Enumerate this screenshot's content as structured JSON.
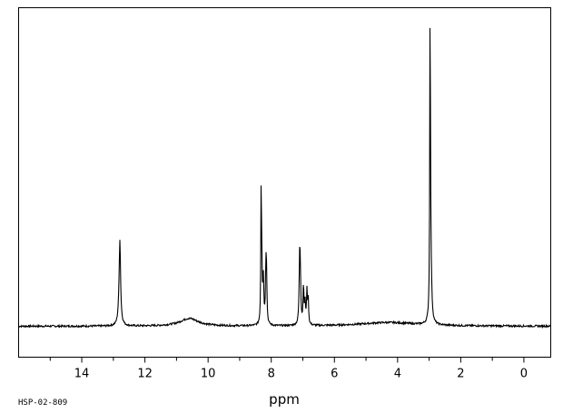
{
  "chart_data": {
    "type": "line",
    "title": "",
    "xlabel": "ppm",
    "ylabel": "",
    "xlim": [
      16.0,
      -0.85
    ],
    "x_reversed": true,
    "ylim": [
      -0.1,
      1.03
    ],
    "grid": false,
    "legend": "none",
    "x_ticks": [
      14,
      12,
      10,
      8,
      6,
      4,
      2,
      0
    ],
    "x_tick_labels": [
      "14",
      "12",
      "10",
      "8",
      "6",
      "4",
      "2",
      "0"
    ],
    "baseline": 0.0,
    "peaks": [
      {
        "ppm": 12.8,
        "height": 0.16,
        "width": 0.035
      },
      {
        "ppm": 12.79,
        "height": 0.13,
        "width": 0.02
      },
      {
        "ppm": 10.6,
        "height": 0.025,
        "width": 0.35
      },
      {
        "ppm": 8.32,
        "height": 0.4,
        "width": 0.012
      },
      {
        "ppm": 8.3,
        "height": 0.16,
        "width": 0.018
      },
      {
        "ppm": 8.25,
        "height": 0.14,
        "width": 0.018
      },
      {
        "ppm": 8.17,
        "height": 0.17,
        "width": 0.016
      },
      {
        "ppm": 8.15,
        "height": 0.14,
        "width": 0.016
      },
      {
        "ppm": 7.1,
        "height": 0.2,
        "width": 0.02
      },
      {
        "ppm": 7.08,
        "height": 0.12,
        "width": 0.018
      },
      {
        "ppm": 6.98,
        "height": 0.13,
        "width": 0.016
      },
      {
        "ppm": 6.93,
        "height": 0.07,
        "width": 0.016
      },
      {
        "ppm": 6.87,
        "height": 0.11,
        "width": 0.016
      },
      {
        "ppm": 6.83,
        "height": 0.08,
        "width": 0.016
      },
      {
        "ppm": 4.3,
        "height": 0.012,
        "width": 1.1
      },
      {
        "ppm": 2.97,
        "height": 0.95,
        "width": 0.012
      },
      {
        "ppm": 2.95,
        "height": 0.2,
        "width": 0.03
      }
    ]
  },
  "footer": {
    "code": "HSP-02-809"
  },
  "colors": {
    "line": "#000000",
    "background": "#ffffff"
  }
}
